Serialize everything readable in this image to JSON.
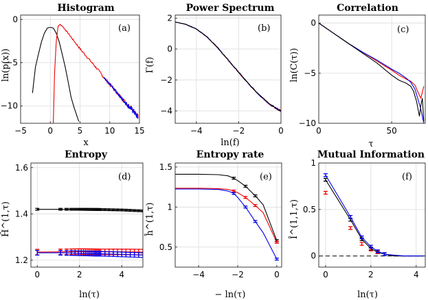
{
  "colors": {
    "black": "#000000",
    "red": "#ee0000",
    "blue": "#0000ee",
    "grid": "#dcdcdc"
  },
  "chart_data": [
    {
      "id": "a",
      "type": "line",
      "title": "Histogram",
      "panel_label": "(a)",
      "xlabel": "x",
      "ylabel": "ln(p(x))",
      "xlim": [
        -5,
        15
      ],
      "ylim": [
        -12,
        0.5
      ],
      "xticks": [
        -5,
        0,
        5,
        10,
        15
      ],
      "xticklabels": [
        "−5",
        "0",
        "5",
        "10",
        "15"
      ],
      "yticks": [
        -10,
        -5,
        0
      ],
      "yticklabels": [
        "−10",
        "−5",
        "0"
      ],
      "series": [
        {
          "name": "black",
          "color": "black",
          "x": [
            -3.0,
            -2.5,
            -2.0,
            -1.5,
            -1.0,
            -0.5,
            0.0,
            0.5,
            1.0,
            1.5,
            2.0,
            2.5,
            3.0,
            3.5,
            4.0,
            4.5,
            4.8
          ],
          "y": [
            -8.5,
            -5.5,
            -4.0,
            -2.6,
            -1.6,
            -1.0,
            -0.92,
            -1.0,
            -1.6,
            -2.6,
            -4.0,
            -5.5,
            -7.2,
            -9.0,
            -10.2,
            -11.2,
            -11.8
          ]
        },
        {
          "name": "red",
          "color": "red",
          "noise": 0.25,
          "x": [
            0.5,
            0.7,
            1.0,
            1.3,
            1.6,
            2.0,
            3.0,
            4.0,
            5.0,
            6.0,
            7.0,
            8.0,
            9.0,
            10.0,
            11.0,
            12.0,
            13.0,
            14.0,
            14.8
          ],
          "y": [
            -12,
            -6.5,
            -2.5,
            -0.8,
            -0.6,
            -0.75,
            -1.6,
            -2.5,
            -3.4,
            -4.2,
            -5.0,
            -5.8,
            -6.7,
            -7.5,
            -8.3,
            -9.1,
            -9.8,
            -10.4,
            -11.2
          ]
        },
        {
          "name": "blue",
          "color": "blue",
          "noise": 0.35,
          "x": [
            9.0,
            10.0,
            11.0,
            12.0,
            13.0,
            14.0,
            14.8
          ],
          "y": [
            -6.7,
            -7.5,
            -8.3,
            -9.1,
            -9.9,
            -10.6,
            -11.4
          ]
        }
      ]
    },
    {
      "id": "b",
      "type": "line",
      "title": "Power Spectrum",
      "panel_label": "(b)",
      "xlabel": "ln(f)",
      "ylabel": "Γ(f)",
      "xlim": [
        -5,
        0
      ],
      "ylim": [
        -4.8,
        2.2
      ],
      "xticks": [
        -4,
        -2,
        0
      ],
      "xticklabels": [
        "−4",
        "−2",
        "0"
      ],
      "yticks": [
        -4,
        -2,
        0,
        2
      ],
      "yticklabels": [
        "−4",
        "−2",
        "0",
        "2"
      ],
      "series": [
        {
          "name": "red",
          "color": "red",
          "noise": 0.06,
          "x": [
            -5.0,
            -4.5,
            -4.0,
            -3.5,
            -3.0,
            -2.5,
            -2.0,
            -1.5,
            -1.0,
            -0.5,
            0.0
          ],
          "y": [
            1.75,
            1.6,
            1.3,
            0.8,
            0.1,
            -0.7,
            -1.5,
            -2.3,
            -3.0,
            -3.6,
            -4.0
          ]
        },
        {
          "name": "blue",
          "color": "blue",
          "noise": 0.05,
          "x": [
            -5.0,
            -4.5,
            -4.0,
            -3.5,
            -3.0,
            -2.5,
            -2.0,
            -1.5,
            -1.0,
            -0.5,
            0.0
          ],
          "y": [
            1.75,
            1.6,
            1.3,
            0.8,
            0.1,
            -0.7,
            -1.5,
            -2.3,
            -3.0,
            -3.6,
            -4.0
          ]
        },
        {
          "name": "black",
          "color": "black",
          "noise": 0.05,
          "x": [
            -5.0,
            -4.5,
            -4.0,
            -3.5,
            -3.0,
            -2.5,
            -2.0,
            -1.5,
            -1.0,
            -0.5,
            0.0
          ],
          "y": [
            1.75,
            1.6,
            1.3,
            0.8,
            0.1,
            -0.7,
            -1.5,
            -2.3,
            -3.0,
            -3.6,
            -4.05
          ]
        }
      ]
    },
    {
      "id": "c",
      "type": "line",
      "title": "Correlation",
      "panel_label": "(c)",
      "xlabel": "τ",
      "ylabel": "ln(C(τ))",
      "xlim": [
        0,
        73
      ],
      "ylim": [
        -10,
        0.8
      ],
      "xticks": [
        0,
        50
      ],
      "xticklabels": [
        "0",
        "50"
      ],
      "yticks": [
        -10,
        -5,
        0
      ],
      "yticklabels": [
        "−10",
        "−5",
        "0"
      ],
      "series": [
        {
          "name": "red",
          "color": "red",
          "x": [
            0,
            10,
            20,
            30,
            40,
            50,
            55,
            60,
            63,
            66,
            68,
            70,
            72
          ],
          "y": [
            0,
            -1.0,
            -2.0,
            -2.9,
            -3.8,
            -4.7,
            -5.2,
            -5.6,
            -5.8,
            -6.2,
            -6.9,
            -7.5,
            -6.3
          ]
        },
        {
          "name": "blue",
          "color": "blue",
          "x": [
            0,
            10,
            20,
            30,
            40,
            50,
            55,
            60,
            63,
            66,
            68,
            70,
            72
          ],
          "y": [
            0,
            -1.0,
            -2.0,
            -2.9,
            -3.7,
            -4.6,
            -5.0,
            -5.5,
            -5.9,
            -6.6,
            -7.6,
            -8.6,
            -10.0
          ]
        },
        {
          "name": "black",
          "color": "black",
          "x": [
            0,
            10,
            20,
            30,
            40,
            50,
            55,
            60,
            63,
            65,
            67,
            69,
            70,
            71,
            72
          ],
          "y": [
            0,
            -1.0,
            -2.0,
            -3.0,
            -4.0,
            -5.2,
            -5.7,
            -6.0,
            -6.3,
            -6.8,
            -7.8,
            -9.3,
            -8.2,
            -7.5,
            -9.8
          ]
        }
      ]
    },
    {
      "id": "d",
      "type": "line",
      "title": "Entropy",
      "panel_label": "(d)",
      "xlabel": "ln(τ)",
      "ylabel": "Ĥ^(1,τ)",
      "xlim": [
        -0.3,
        5
      ],
      "ylim": [
        1.17,
        1.62
      ],
      "xticks": [
        0,
        2,
        4
      ],
      "xticklabels": [
        "0",
        "2",
        "4"
      ],
      "yticks": [
        1.2,
        1.4,
        1.6
      ],
      "yticklabels": [
        "1.2",
        "1.4",
        "1.6"
      ],
      "errorbar_x": [
        0,
        1.1,
        1.39,
        1.61,
        1.79,
        1.95,
        2.08,
        2.2,
        2.3,
        2.4,
        2.48,
        2.56,
        2.64,
        2.71,
        2.77,
        2.83,
        2.89,
        2.94,
        3.0,
        3.2,
        3.4,
        3.6,
        3.8,
        4.0,
        4.2,
        4.4,
        4.6,
        4.8,
        5.0
      ],
      "series": [
        {
          "name": "black",
          "color": "black",
          "x": [
            0,
            1.1,
            2.0,
            3.0,
            4.0,
            5.0
          ],
          "y": [
            1.42,
            1.42,
            1.42,
            1.419,
            1.417,
            1.413
          ],
          "err": 0.004
        },
        {
          "name": "red",
          "color": "red",
          "x": [
            0,
            1.1,
            2.0,
            3.0,
            4.0,
            5.0
          ],
          "y": [
            1.235,
            1.236,
            1.237,
            1.236,
            1.236,
            1.235
          ],
          "err": 0.012
        },
        {
          "name": "blue",
          "color": "blue",
          "x": [
            0,
            1.1,
            2.0,
            3.0,
            4.0,
            5.0
          ],
          "y": [
            1.232,
            1.232,
            1.23,
            1.228,
            1.225,
            1.222
          ],
          "err": 0.01
        }
      ]
    },
    {
      "id": "e",
      "type": "line",
      "title": "Entropy rate",
      "panel_label": "(e)",
      "xlabel": "− ln(τ)",
      "ylabel": "ĥ^(1,τ)",
      "xlim": [
        -5.2,
        0.25
      ],
      "ylim": [
        0.25,
        1.55
      ],
      "xticks": [
        -4,
        -2,
        0
      ],
      "xticklabels": [
        "−4",
        "−2",
        "0"
      ],
      "yticks": [
        0.5,
        1,
        1.5
      ],
      "yticklabels": [
        "0.5",
        "1",
        "1.5"
      ],
      "series": [
        {
          "name": "black",
          "color": "black",
          "x": [
            -5.2,
            -4.0,
            -3.0,
            -2.5,
            -2.2,
            -2.0,
            -1.6,
            -1.1,
            -0.7,
            0.0
          ],
          "y": [
            1.41,
            1.41,
            1.405,
            1.39,
            1.36,
            1.33,
            1.26,
            1.14,
            1.03,
            0.58
          ],
          "err": 0.012,
          "err_x": [
            -2.2,
            -1.6,
            -1.1,
            0.0
          ]
        },
        {
          "name": "red",
          "color": "red",
          "x": [
            -5.2,
            -4.0,
            -3.0,
            -2.5,
            -2.2,
            -2.0,
            -1.6,
            -1.1,
            -0.7,
            0.0
          ],
          "y": [
            1.235,
            1.235,
            1.23,
            1.22,
            1.2,
            1.18,
            1.12,
            1.02,
            0.93,
            0.56
          ],
          "err": 0.012,
          "err_x": [
            -2.2,
            -1.6,
            -1.1,
            0.0
          ]
        },
        {
          "name": "blue",
          "color": "blue",
          "x": [
            -5.2,
            -4.0,
            -3.0,
            -2.5,
            -2.2,
            -2.0,
            -1.6,
            -1.1,
            -0.7,
            0.0
          ],
          "y": [
            1.225,
            1.225,
            1.22,
            1.2,
            1.17,
            1.12,
            1.0,
            0.82,
            0.68,
            0.35
          ],
          "err": 0.012,
          "err_x": [
            -2.2,
            -1.6,
            -1.1,
            0.0
          ]
        }
      ]
    },
    {
      "id": "f",
      "type": "line",
      "title": "Mutual Information",
      "panel_label": "(f)",
      "xlabel": "ln(τ)",
      "ylabel": "Î^(1,1,τ)",
      "xlim": [
        -0.3,
        4.4
      ],
      "ylim": [
        -0.12,
        1.0
      ],
      "xticks": [
        0,
        2,
        4
      ],
      "xticklabels": [
        "0",
        "2",
        "4"
      ],
      "yticks": [
        0,
        0.5,
        1
      ],
      "yticklabels": [
        "0",
        "0.5",
        "1"
      ],
      "zero_line": 0,
      "series": [
        {
          "name": "black",
          "color": "black",
          "x": [
            0,
            1.1,
            1.6,
            2.0,
            2.3,
            2.6,
            3.0,
            3.5,
            4.0,
            4.3
          ],
          "y": [
            0.82,
            0.39,
            0.18,
            0.08,
            0.04,
            0.02,
            0.0,
            0.0,
            0.0,
            0.0
          ],
          "err": 0.015,
          "err_x": [
            0,
            1.1,
            1.6,
            2.0,
            2.3,
            2.6
          ]
        },
        {
          "name": "red",
          "color": "red",
          "x": [
            0,
            1.1,
            1.6,
            2.0,
            2.3
          ],
          "y": [
            0.68,
            0.3,
            0.13,
            0.07,
            0.04
          ],
          "err": 0.015,
          "err_x": [
            0,
            1.1,
            1.6,
            2.0,
            2.3
          ],
          "markers_only": true
        },
        {
          "name": "blue",
          "color": "blue",
          "x": [
            0,
            1.1,
            1.6,
            2.0,
            2.3,
            2.6,
            3.0,
            3.5,
            4.0,
            4.3
          ],
          "y": [
            0.87,
            0.42,
            0.2,
            0.1,
            0.05,
            0.02,
            0.01,
            0.0,
            0.0,
            0.0
          ],
          "err": 0.015,
          "err_x": [
            0,
            1.1,
            1.6,
            2.0,
            2.3,
            2.6
          ]
        }
      ]
    }
  ]
}
